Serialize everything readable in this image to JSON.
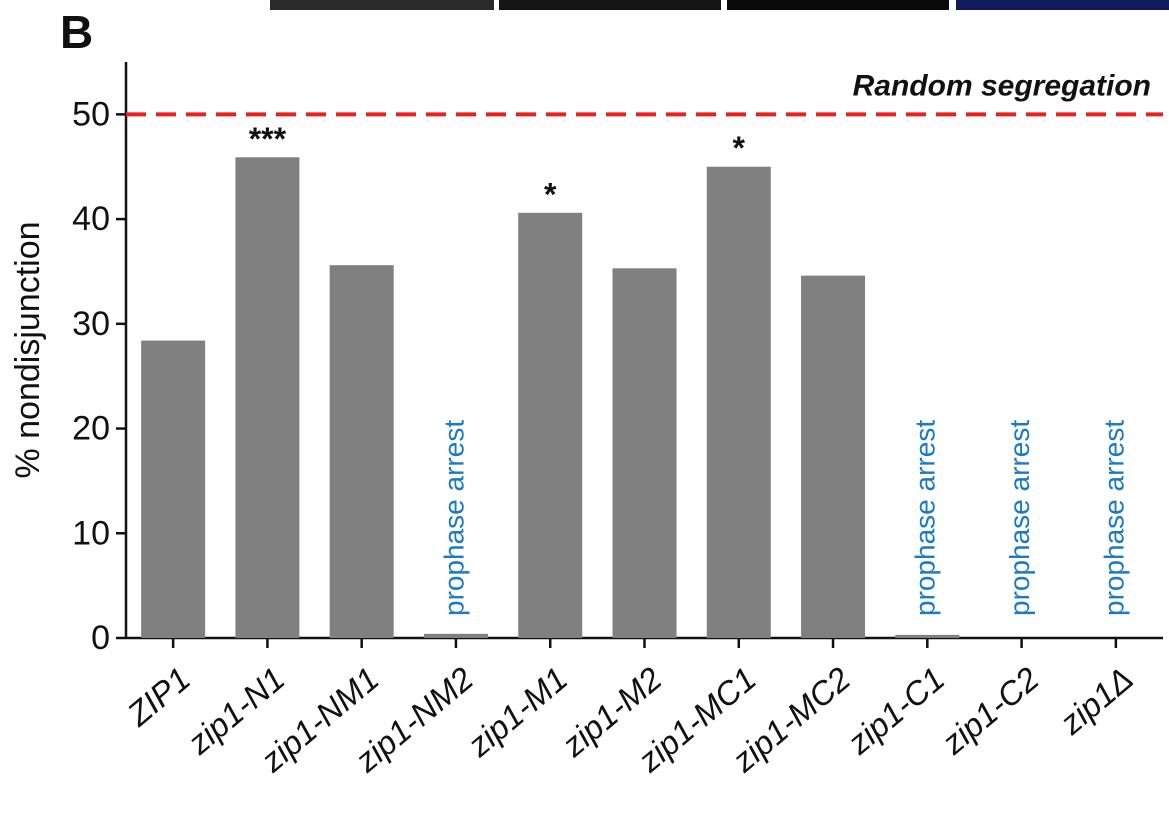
{
  "chart_data": {
    "type": "bar",
    "panel_label": "B",
    "ylabel": "% nondisjunction",
    "categories": [
      "ZIP1",
      "zip1-N1",
      "zip1-NM1",
      "zip1-NM2",
      "zip1-M1",
      "zip1-M2",
      "zip1-MC1",
      "zip1-MC2",
      "zip1-C1",
      "zip1-C2",
      "zip1Δ"
    ],
    "values": [
      28.4,
      45.9,
      35.6,
      0.4,
      40.6,
      35.3,
      45.0,
      34.6,
      0.3,
      null,
      null
    ],
    "significance": [
      null,
      "***",
      null,
      null,
      "*",
      null,
      "*",
      null,
      null,
      null,
      null
    ],
    "notes": [
      null,
      null,
      null,
      "prophase arrest",
      null,
      null,
      null,
      null,
      "prophase arrest",
      "prophase arrest",
      "prophase arrest"
    ],
    "color": "#808080",
    "note_color": "#1a7ac4",
    "reference_line": {
      "value": 50,
      "label": "Random segregation",
      "color": "#e8211f"
    },
    "ylim": [
      0,
      55
    ],
    "yticks": [
      0,
      10,
      20,
      30,
      40,
      50
    ]
  }
}
